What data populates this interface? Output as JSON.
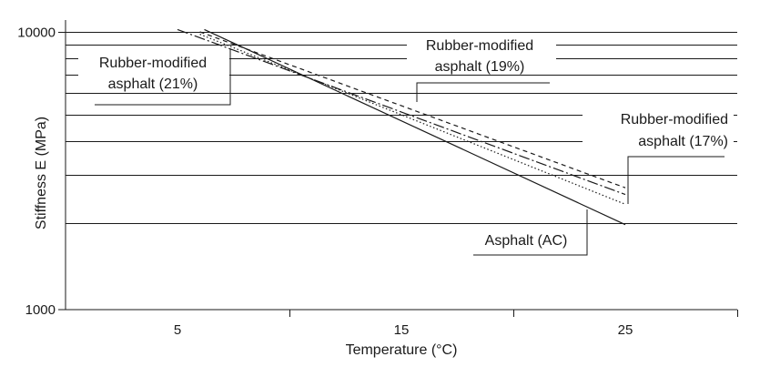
{
  "chart_data": {
    "type": "line",
    "xlabel": "Temperature (°C)",
    "ylabel": "Stiffness E (MPa)",
    "x_scale": "linear",
    "y_scale": "log",
    "xlim": [
      0,
      30
    ],
    "ylim": [
      1000,
      10000
    ],
    "x_ticks": [
      5,
      15,
      25
    ],
    "y_ticks": [
      1000,
      10000
    ],
    "y_tick_labels": [
      "1000",
      "10000"
    ],
    "grid": "horizontal",
    "grid_y_values": [
      2000,
      3000,
      4000,
      5000,
      6000,
      7000,
      8000,
      9000
    ],
    "series": [
      {
        "name": "Asphalt (AC)",
        "line_style": "solid",
        "x": [
          6.2,
          25.0
        ],
        "y": [
          10200,
          1980
        ]
      },
      {
        "name": "Rubber-modified asphalt (21%)",
        "line_style": "dash-dot",
        "x": [
          5.0,
          25.0
        ],
        "y": [
          10200,
          2550
        ]
      },
      {
        "name": "Rubber-modified asphalt (19%)",
        "line_style": "dashed",
        "x": [
          6.0,
          25.0
        ],
        "y": [
          10000,
          2700
        ]
      },
      {
        "name": "Rubber-modified asphalt (17%)",
        "line_style": "dotted",
        "x": [
          6.0,
          25.0
        ],
        "y": [
          9800,
          2350
        ]
      }
    ],
    "annotations": [
      {
        "lines": [
          "Rubber-modified",
          "asphalt (21%)"
        ],
        "series": "Rubber-modified asphalt (21%)"
      },
      {
        "lines": [
          "Rubber-modified",
          "asphalt (19%)"
        ],
        "series": "Rubber-modified asphalt (19%)"
      },
      {
        "lines": [
          "Rubber-modified",
          "asphalt (17%)"
        ],
        "series": "Rubber-modified asphalt (17%)"
      },
      {
        "lines": [
          "Asphalt (AC)"
        ],
        "series": "Asphalt (AC)"
      }
    ]
  }
}
